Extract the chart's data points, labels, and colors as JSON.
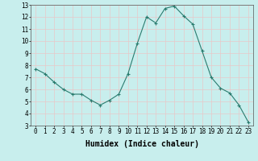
{
  "x": [
    0,
    1,
    2,
    3,
    4,
    5,
    6,
    7,
    8,
    9,
    10,
    11,
    12,
    13,
    14,
    15,
    16,
    17,
    18,
    19,
    20,
    21,
    22,
    23
  ],
  "y": [
    7.7,
    7.3,
    6.6,
    6.0,
    5.6,
    5.6,
    5.1,
    4.7,
    5.1,
    5.6,
    7.3,
    9.8,
    12.0,
    11.5,
    12.7,
    12.9,
    12.1,
    11.4,
    9.2,
    7.0,
    6.1,
    5.7,
    4.7,
    3.3
  ],
  "line_color": "#2a7c6f",
  "marker": "+",
  "marker_size": 3,
  "bg_color": "#c8eeed",
  "grid_color": "#e8c8c8",
  "xlabel": "Humidex (Indice chaleur)",
  "ylim": [
    3,
    13
  ],
  "xlim": [
    -0.5,
    23.5
  ],
  "yticks": [
    3,
    4,
    5,
    6,
    7,
    8,
    9,
    10,
    11,
    12,
    13
  ],
  "xticks": [
    0,
    1,
    2,
    3,
    4,
    5,
    6,
    7,
    8,
    9,
    10,
    11,
    12,
    13,
    14,
    15,
    16,
    17,
    18,
    19,
    20,
    21,
    22,
    23
  ],
  "tick_fontsize": 5.5,
  "xlabel_fontsize": 7.0,
  "line_width": 0.8
}
